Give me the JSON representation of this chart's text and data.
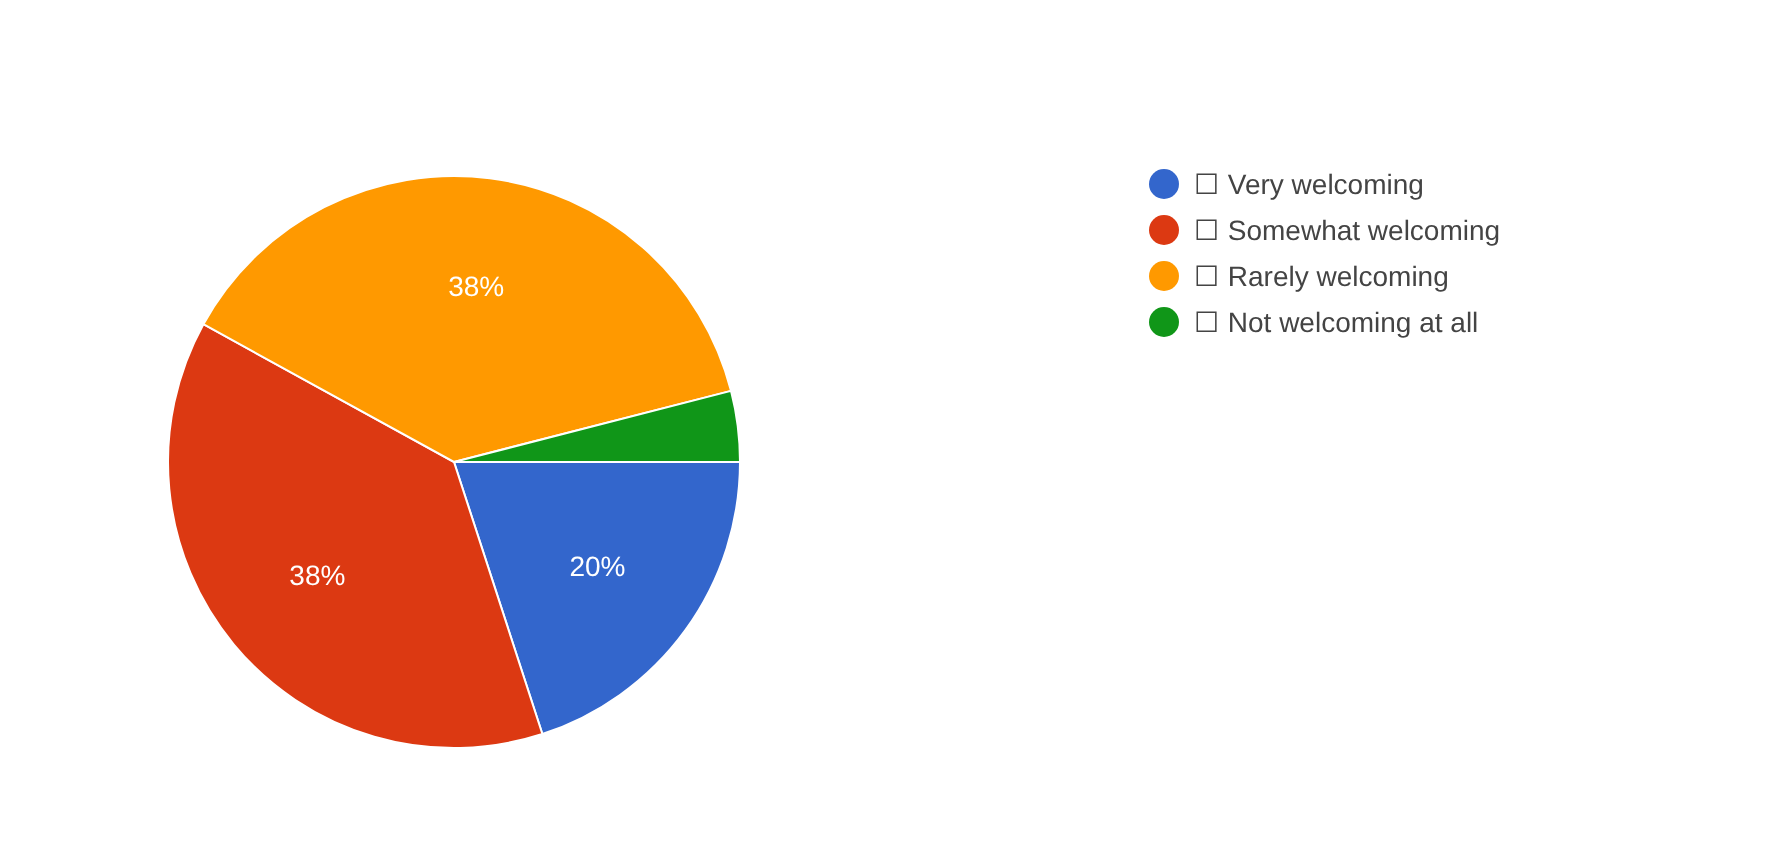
{
  "chart_data": {
    "type": "pie",
    "categories": [
      "☐ Very welcoming",
      "☐ Somewhat welcoming",
      "☐ Rarely welcoming",
      "☐ Not welcoming at all"
    ],
    "values": [
      20,
      38,
      38,
      4
    ],
    "colors": [
      "#3366cc",
      "#dc3912",
      "#ff9900",
      "#109618"
    ],
    "value_labels": [
      "20%",
      "38%",
      "38%",
      null
    ],
    "legend": "top right"
  }
}
